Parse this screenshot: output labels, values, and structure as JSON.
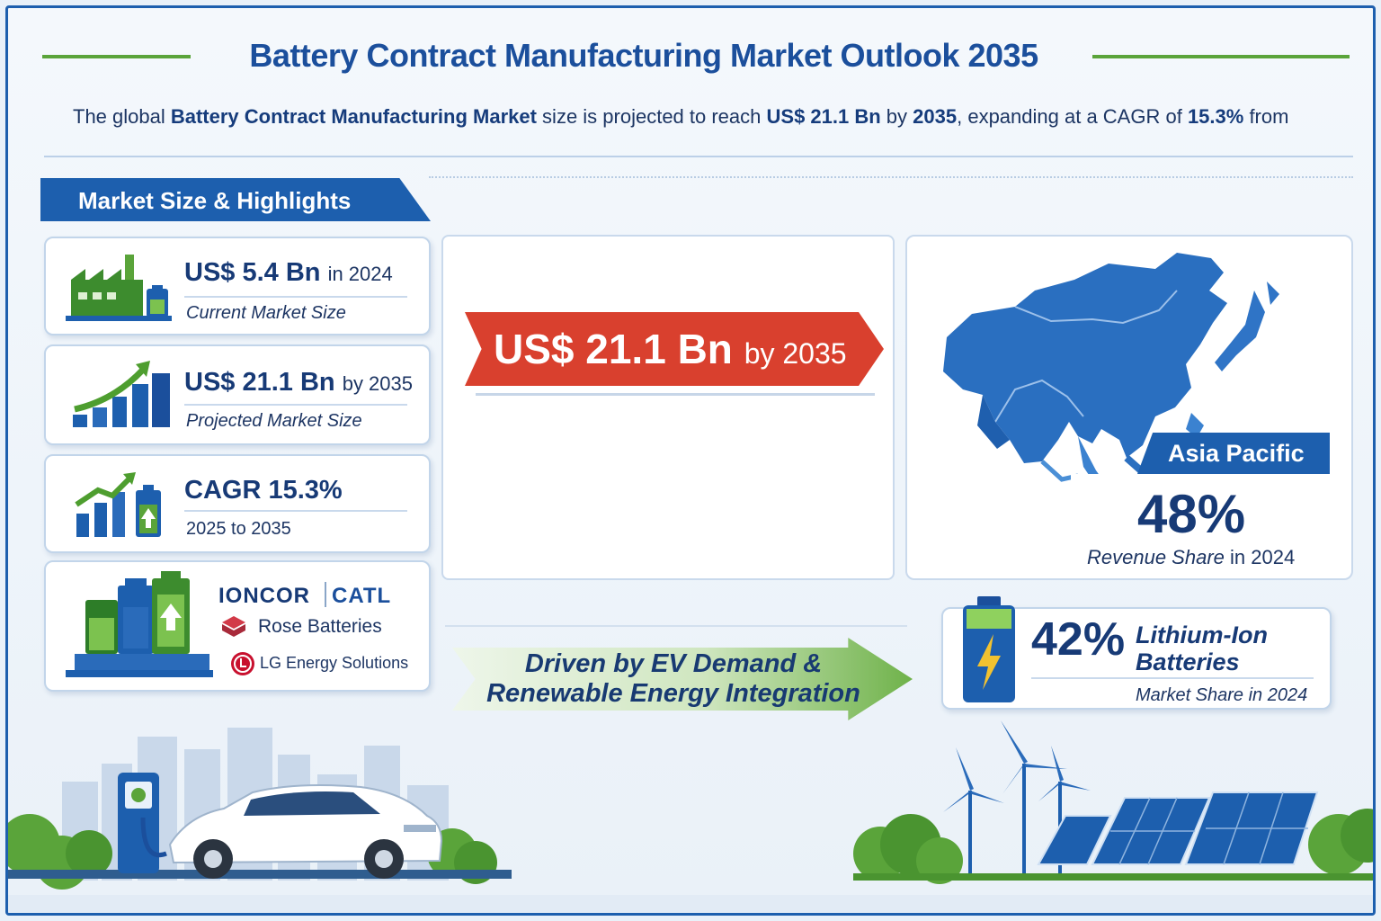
{
  "header": {
    "title": "Battery Contract Manufacturing Market Outlook 2035",
    "subtitle_parts": [
      "The global ",
      "Battery Contract Manufacturing Market",
      " size is projected to reach ",
      "US$ 21.1 Bn",
      " by ",
      "2035",
      ", expanding at a CAGR of ",
      "15.3%",
      " from"
    ]
  },
  "section": {
    "title": "Market Size & Highlights"
  },
  "highlights": [
    {
      "value": "US$ 5.4 Bn",
      "value_suffix": "in 2024",
      "caption": "Current Market Size",
      "icon": "factory-battery-icon"
    },
    {
      "value": "US$ 21.1 Bn",
      "value_suffix": "by 2035",
      "caption": "Projected Market Size",
      "icon": "growth-bars-icon"
    },
    {
      "value": "CAGR 15.3%",
      "value_suffix": "",
      "caption": "2025 to 2035",
      "icon": "cagr-battery-icon"
    }
  ],
  "companies": {
    "icon": "battery-plant-icon",
    "items": [
      "IONCOR",
      "CATL",
      "Rose Batteries",
      "LG Energy Solutions"
    ]
  },
  "banner": {
    "value": "US$ 21.1 Bn",
    "suffix": "by 2035"
  },
  "region": {
    "name": "Asia Pacific",
    "share": "48%",
    "caption_italic": "Revenue Share",
    "caption_rest": "in 2024"
  },
  "driver": {
    "line1": "Driven by EV Demand &",
    "line2": "Renewable Energy Integration"
  },
  "segment": {
    "share": "42%",
    "label_line1": "Lithium-Ion",
    "label_line2": "Batteries",
    "caption": "Market Share in 2024"
  },
  "colors": {
    "primary_blue": "#1d5fae",
    "accent_red": "#d9402e",
    "accent_green": "#5aa43a",
    "text_navy": "#173a76"
  }
}
